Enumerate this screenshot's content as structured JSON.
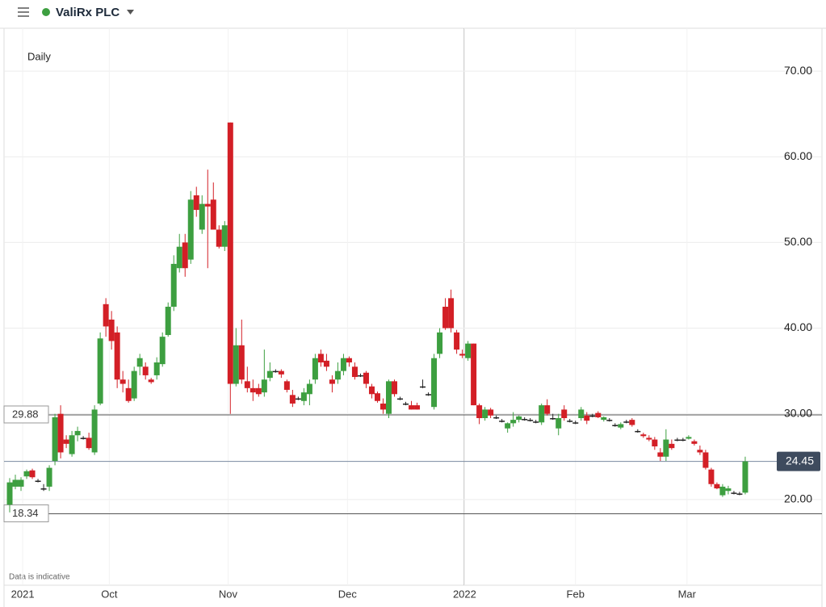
{
  "header": {
    "title": "ValiRx PLC"
  },
  "chart_data": {
    "type": "candlestick",
    "subtitle": "Daily",
    "footnote": "Data is indicative",
    "up_color": "#3d9f40",
    "down_color": "#d31f26",
    "open": [
      19.4,
      21.5,
      21.5,
      22.7,
      23.4,
      22.2,
      21.3,
      21.5,
      24.5,
      30.0,
      27.0,
      25.3,
      27.5,
      27.2,
      27.2,
      25.5,
      31.2,
      42.8,
      41.0,
      39.5,
      34.0,
      33.0,
      31.8,
      35.5,
      35.5,
      34.0,
      34.5,
      35.8,
      39.2,
      42.5,
      47.0,
      50.0,
      48.0,
      55.5,
      51.5,
      54.5,
      55.0,
      51.5,
      49.5,
      64.0,
      33.5,
      38.0,
      33.8,
      33.0,
      33.0,
      32.5,
      34.2,
      35.0,
      35.0,
      33.8,
      32.2,
      31.8,
      31.5,
      32.3,
      34.0,
      37.0,
      36.2,
      34.0,
      34.0,
      35.0,
      36.5,
      35.5,
      34.5,
      34.8,
      33.2,
      32.4,
      31.2,
      30.0,
      33.8,
      31.8,
      31.2,
      31.0,
      31.0,
      33.2,
      32.3,
      30.8,
      37.0,
      42.5,
      43.5,
      39.5,
      37.0,
      36.5,
      38.2,
      31.0,
      29.5,
      30.5,
      29.6,
      29.2,
      28.3,
      28.9,
      29.3,
      29.4,
      29.3,
      29.1,
      29.0,
      31.0,
      29.5,
      28.3,
      30.5,
      29.2,
      29.0,
      29.5,
      29.8,
      29.8,
      30.1,
      29.3,
      29.3,
      28.7,
      28.4,
      29.1,
      29.3,
      28.0,
      27.6,
      27.2,
      27.0,
      25.5,
      25.0,
      26.5,
      27.0,
      27.0,
      27.1,
      26.8,
      25.8,
      25.5,
      23.5,
      21.8,
      20.5,
      21.0,
      20.8,
      20.7,
      20.8
    ],
    "high": [
      22.5,
      22.9,
      22.6,
      23.5,
      23.6,
      22.4,
      21.8,
      24.0,
      30.0,
      31.0,
      27.5,
      28.0,
      28.5,
      27.4,
      27.8,
      31.0,
      39.5,
      43.5,
      42.0,
      40.2,
      35.0,
      34.0,
      35.5,
      37.0,
      36.0,
      34.2,
      36.6,
      39.5,
      43.0,
      48.5,
      51.0,
      51.0,
      56.0,
      56.5,
      55.5,
      58.5,
      57.0,
      52.0,
      52.5,
      64.0,
      40.0,
      41.0,
      35.5,
      34.0,
      33.5,
      37.5,
      36.0,
      35.2,
      35.2,
      34.0,
      32.8,
      32.0,
      33.0,
      34.0,
      37.0,
      37.5,
      37.0,
      34.5,
      36.0,
      37.0,
      36.7,
      36.0,
      34.7,
      35.0,
      33.5,
      32.6,
      31.8,
      34.0,
      34.0,
      32.0,
      31.4,
      31.5,
      31.3,
      34.0,
      32.5,
      37.0,
      40.0,
      43.5,
      44.5,
      39.8,
      37.5,
      38.5,
      38.2,
      31.2,
      30.8,
      30.7,
      29.8,
      29.4,
      29.0,
      30.2,
      29.8,
      29.6,
      29.5,
      29.3,
      31.2,
      31.7,
      30.0,
      30.0,
      31.0,
      29.4,
      29.2,
      30.8,
      30.2,
      30.0,
      30.3,
      29.7,
      29.5,
      28.9,
      29.0,
      29.3,
      29.5,
      28.2,
      27.8,
      27.5,
      27.3,
      26.0,
      28.2,
      27.0,
      27.2,
      27.2,
      27.5,
      27.0,
      26.3,
      25.8,
      23.7,
      22.0,
      21.8,
      21.6,
      21.0,
      20.9,
      25.0
    ],
    "low": [
      18.5,
      21.2,
      21.0,
      22.4,
      22.4,
      22.0,
      21.0,
      21.0,
      24.0,
      24.8,
      26.0,
      25.0,
      26.8,
      27.0,
      25.8,
      25.2,
      31.0,
      39.0,
      37.5,
      33.0,
      32.5,
      31.3,
      31.5,
      34.5,
      34.0,
      33.5,
      34.0,
      35.5,
      39.0,
      42.0,
      46.5,
      46.0,
      47.5,
      53.0,
      51.0,
      47.0,
      52.0,
      49.3,
      49.0,
      30.0,
      33.2,
      33.5,
      32.5,
      31.5,
      32.0,
      32.0,
      33.8,
      34.8,
      34.2,
      32.5,
      30.8,
      31.6,
      31.0,
      31.0,
      33.5,
      35.5,
      35.0,
      32.5,
      33.5,
      34.5,
      35.5,
      34.0,
      34.3,
      33.0,
      31.8,
      31.3,
      30.0,
      29.5,
      32.0,
      31.6,
      31.0,
      30.5,
      30.5,
      33.0,
      32.1,
      30.5,
      36.5,
      39.8,
      39.5,
      37.0,
      36.5,
      36.2,
      31.0,
      28.8,
      29.2,
      29.5,
      29.4,
      29.0,
      27.8,
      28.5,
      29.0,
      29.2,
      29.1,
      28.9,
      28.7,
      29.8,
      29.3,
      27.5,
      29.2,
      29.0,
      28.8,
      29.2,
      28.8,
      29.6,
      29.5,
      29.1,
      29.1,
      28.5,
      28.2,
      28.9,
      28.5,
      27.8,
      27.2,
      26.8,
      25.8,
      24.5,
      24.5,
      25.8,
      26.8,
      26.8,
      27.0,
      26.3,
      25.2,
      23.5,
      21.5,
      21.2,
      20.3,
      20.6,
      20.6,
      20.5,
      20.6
    ],
    "close": [
      22.0,
      22.3,
      22.3,
      23.3,
      22.6,
      22.2,
      21.3,
      23.7,
      29.6,
      25.5,
      26.5,
      27.5,
      28.0,
      27.2,
      26.0,
      30.5,
      38.8,
      40.2,
      38.5,
      34.0,
      33.5,
      31.5,
      35.0,
      36.5,
      34.5,
      33.7,
      36.0,
      39.0,
      42.5,
      47.5,
      49.5,
      47.0,
      55.0,
      53.8,
      54.5,
      54.2,
      51.5,
      49.5,
      52.0,
      33.5,
      38.0,
      34.0,
      33.0,
      32.5,
      32.3,
      34.0,
      35.0,
      35.0,
      34.6,
      32.8,
      31.2,
      31.8,
      32.5,
      33.5,
      36.5,
      36.0,
      35.5,
      33.5,
      35.0,
      36.5,
      36.0,
      34.3,
      34.5,
      33.5,
      32.3,
      31.5,
      30.5,
      33.8,
      32.3,
      31.8,
      31.2,
      30.5,
      30.5,
      33.2,
      32.3,
      36.5,
      39.5,
      40.0,
      40.0,
      37.5,
      36.8,
      38.2,
      31.0,
      29.5,
      30.5,
      29.8,
      29.6,
      29.2,
      28.9,
      29.3,
      29.7,
      29.4,
      29.3,
      29.1,
      31.0,
      30.0,
      29.5,
      29.5,
      29.5,
      29.2,
      29.0,
      30.5,
      29.2,
      29.8,
      29.6,
      29.6,
      29.3,
      28.7,
      28.8,
      29.1,
      28.7,
      28.0,
      27.4,
      27.0,
      26.2,
      25.0,
      27.0,
      26.0,
      27.0,
      27.0,
      27.3,
      26.5,
      25.5,
      23.7,
      21.8,
      21.3,
      21.5,
      21.3,
      20.8,
      20.7,
      24.45
    ],
    "ylim": [
      10,
      75
    ],
    "yticks": [
      {
        "value": 20,
        "label": "20.00"
      },
      {
        "value": 30,
        "label": "30.00"
      },
      {
        "value": 40,
        "label": "40.00"
      },
      {
        "value": 50,
        "label": "50.00"
      },
      {
        "value": 60,
        "label": "60.00"
      },
      {
        "value": 70,
        "label": "70.00"
      }
    ],
    "xlim": [
      -1,
      135
    ],
    "xticks": [
      {
        "value": 2.3,
        "label": "2021"
      },
      {
        "value": 17.6,
        "label": "Oct"
      },
      {
        "value": 38.6,
        "label": "Nov"
      },
      {
        "value": 59.7,
        "label": "Dec"
      },
      {
        "value": 80.4,
        "label": "2022"
      },
      {
        "value": 100,
        "label": "Feb"
      },
      {
        "value": 119.7,
        "label": "Mar"
      }
    ],
    "price_lines": [
      29.88,
      18.34
    ],
    "last_price": 24.45,
    "grid": true
  }
}
